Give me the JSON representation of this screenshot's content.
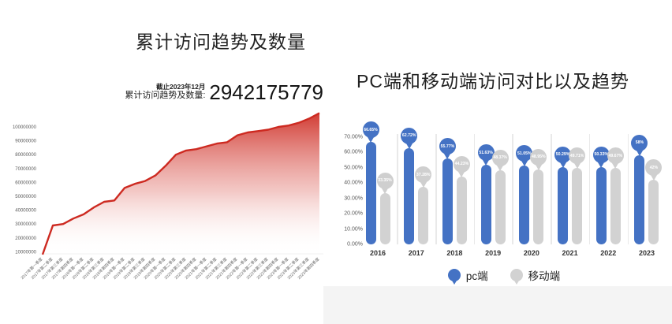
{
  "page": {
    "background": "#ffffff"
  },
  "left_chart": {
    "title": "累计访问趋势及数量",
    "as_of_label": "截止2023年12月",
    "total_label": "累计访问趋势及数量:",
    "total_value": "2942175779",
    "line_color": "#cd2a21"
  },
  "right_chart": {
    "title": "PC端和移动端访问对比以及趋势",
    "legend": [
      {
        "label": "pc端",
        "color": "#4472c4"
      },
      {
        "label": "移动端",
        "color": "#d2d2d2"
      }
    ]
  },
  "chart_data": [
    {
      "type": "area",
      "title": "累计访问趋势及数量",
      "annotation": {
        "as_of": "截止2023年12月",
        "total": "2942175779"
      },
      "x": [
        "2017年第一季度",
        "2017年第二季度",
        "2017年第三季度",
        "2017年第四季度",
        "2018年第一季度",
        "2018年第二季度",
        "2018年第三季度",
        "2018年第四季度",
        "2019年第一季度",
        "2019年第二季度",
        "2019年第三季度",
        "2019年第四季度",
        "2020年第一季度",
        "2020年第二季度",
        "2020年第三季度",
        "2020年第四季度",
        "2021年第一季度",
        "2021年第二季度",
        "2021年第三季度",
        "2021年第四季度",
        "2022年第一季度",
        "2022年第二季度",
        "2022年第三季度",
        "2022年第四季度",
        "2023年第一季度",
        "2023年第二季度",
        "2023年第三季度",
        "2023年第四季度"
      ],
      "values": [
        8000000,
        29000000,
        30000000,
        34000000,
        37000000,
        42000000,
        46000000,
        47000000,
        56000000,
        59000000,
        61000000,
        65000000,
        72000000,
        80000000,
        83000000,
        84000000,
        86000000,
        88000000,
        89000000,
        94000000,
        96000000,
        97000000,
        98000000,
        100000000,
        101000000,
        103000000,
        106000000,
        110000000
      ],
      "ytick_labels": [
        "100000000",
        "90000000",
        "80000000",
        "70000000",
        "60000000",
        "50000000",
        "40000000",
        "30000000",
        "20000000",
        "10000000"
      ],
      "yaxis_labeled_range": [
        10000000,
        100000000
      ],
      "grid": false,
      "line_color": "#cd2a21"
    },
    {
      "type": "bar",
      "variant": "lollipop-capsule",
      "title": "PC端和移动端访问对比以及趋势",
      "categories": [
        "2016",
        "2017",
        "2018",
        "2019",
        "2020",
        "2021",
        "2022",
        "2023"
      ],
      "series": [
        {
          "name": "pc端",
          "color": "#4472c4",
          "balloon_color": "#4472c4",
          "label_text_color": "#ffffff",
          "values": [
            66.65,
            62.72,
            55.77,
            51.63,
            51.05,
            50.29,
            50.33,
            58
          ],
          "labels": [
            "66.65%",
            "62.72%",
            "55.77%",
            "51.63%",
            "51.05%",
            "50.29%",
            "50.33%",
            "58%"
          ]
        },
        {
          "name": "移动端",
          "color": "#d2d2d2",
          "balloon_color": "#cfcfcf",
          "label_text_color": "#ffffff",
          "values": [
            33.35,
            37.28,
            44.23,
            48.37,
            48.95,
            49.71,
            49.67,
            42
          ],
          "labels": [
            "33.35%",
            "37.28%",
            "44.23%",
            "48.37%",
            "48.95%",
            "49.71%",
            "49.67%",
            "42%"
          ]
        }
      ],
      "ytick_labels": [
        "0.00%",
        "10.00%",
        "20.00%",
        "30.00%",
        "40.00%",
        "50.00%",
        "60.00%",
        "70.00%"
      ],
      "ylim": [
        0,
        70
      ],
      "legend_position": "bottom",
      "grid": false
    }
  ]
}
